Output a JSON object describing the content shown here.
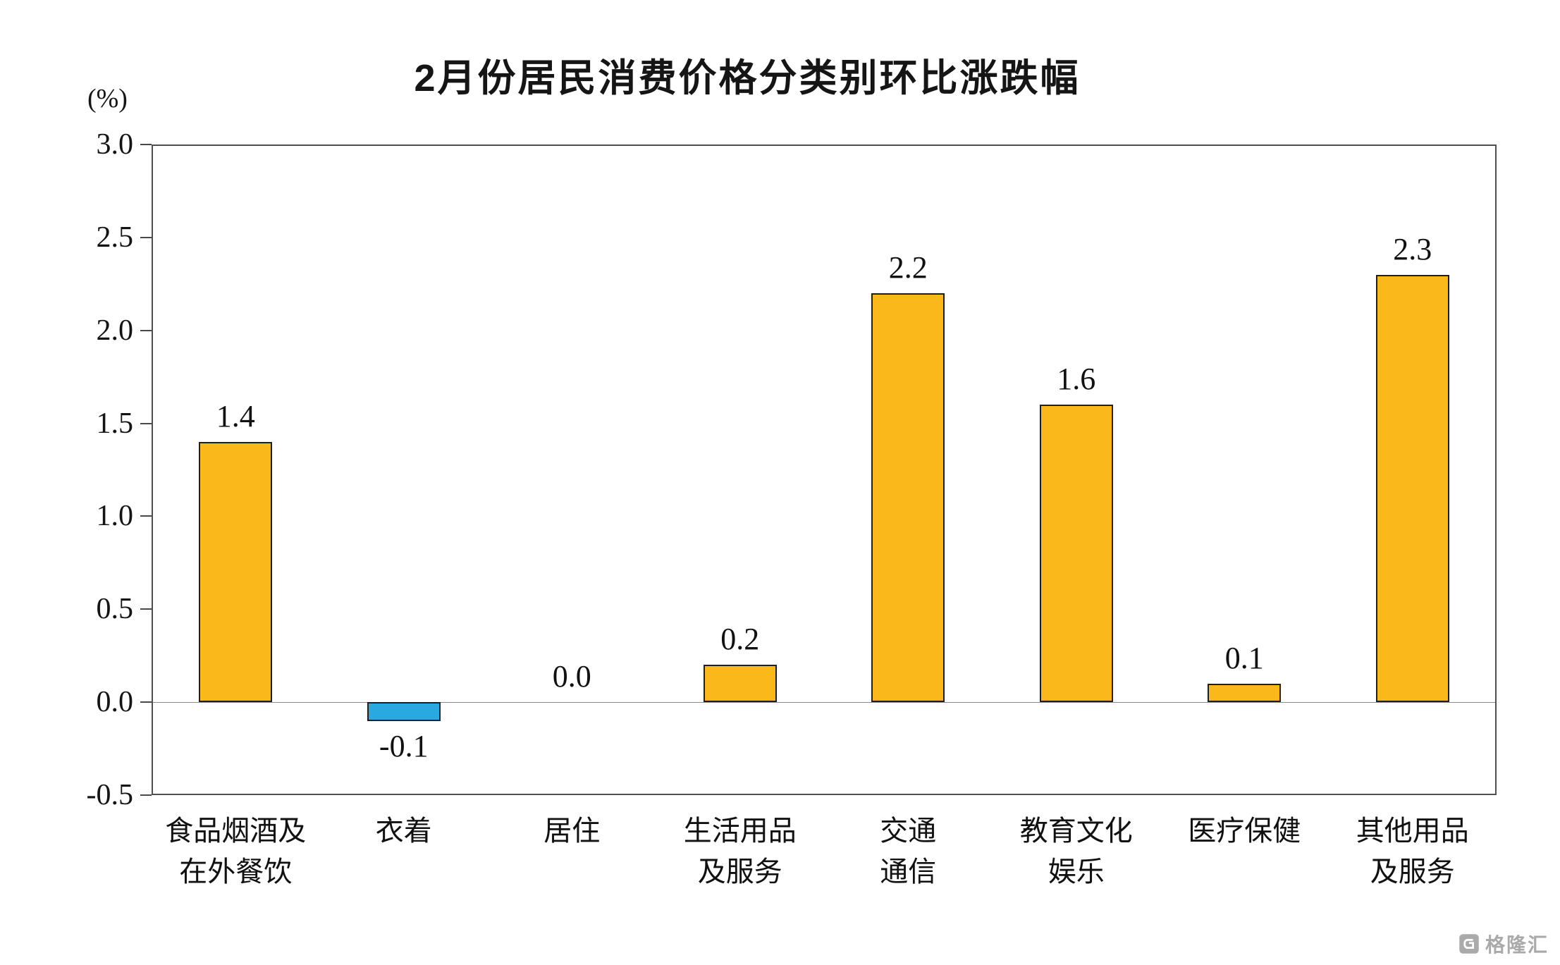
{
  "page": {
    "watermark": {
      "text": "格隆汇"
    }
  },
  "chart_data": {
    "type": "bar",
    "title": "2月份居民消费价格分类别环比涨跌幅",
    "ylabel": "(%)",
    "xlabel": "",
    "categories": [
      "食品烟酒及在外餐饮",
      "衣着",
      "居住",
      "生活用品及服务",
      "交通通信",
      "教育文化娱乐",
      "医疗保健",
      "其他用品及服务"
    ],
    "category_lines": [
      [
        "食品烟酒及",
        "在外餐饮"
      ],
      [
        "衣着"
      ],
      [
        "居住"
      ],
      [
        "生活用品",
        "及服务"
      ],
      [
        "交通",
        "通信"
      ],
      [
        "教育文化",
        "娱乐"
      ],
      [
        "医疗保健"
      ],
      [
        "其他用品",
        "及服务"
      ]
    ],
    "values": [
      1.4,
      -0.1,
      0.0,
      0.2,
      2.2,
      1.6,
      0.1,
      2.3
    ],
    "value_labels": [
      "1.4",
      "-0.1",
      "0.0",
      "0.2",
      "2.2",
      "1.6",
      "0.1",
      "2.3"
    ],
    "ylim": [
      -0.5,
      3.0
    ],
    "yticks": [
      3.0,
      2.5,
      2.0,
      1.5,
      1.0,
      0.5,
      0.0,
      -0.5
    ],
    "ytick_labels": [
      "3.0",
      "2.5",
      "2.0",
      "1.5",
      "1.0",
      "0.5",
      "0.0",
      "-0.5"
    ],
    "grid": false,
    "legend": false,
    "bar_color_positive": "#FBB81A",
    "bar_color_negative": "#29A9E0",
    "bar_border_color": "#1f1f1f"
  }
}
